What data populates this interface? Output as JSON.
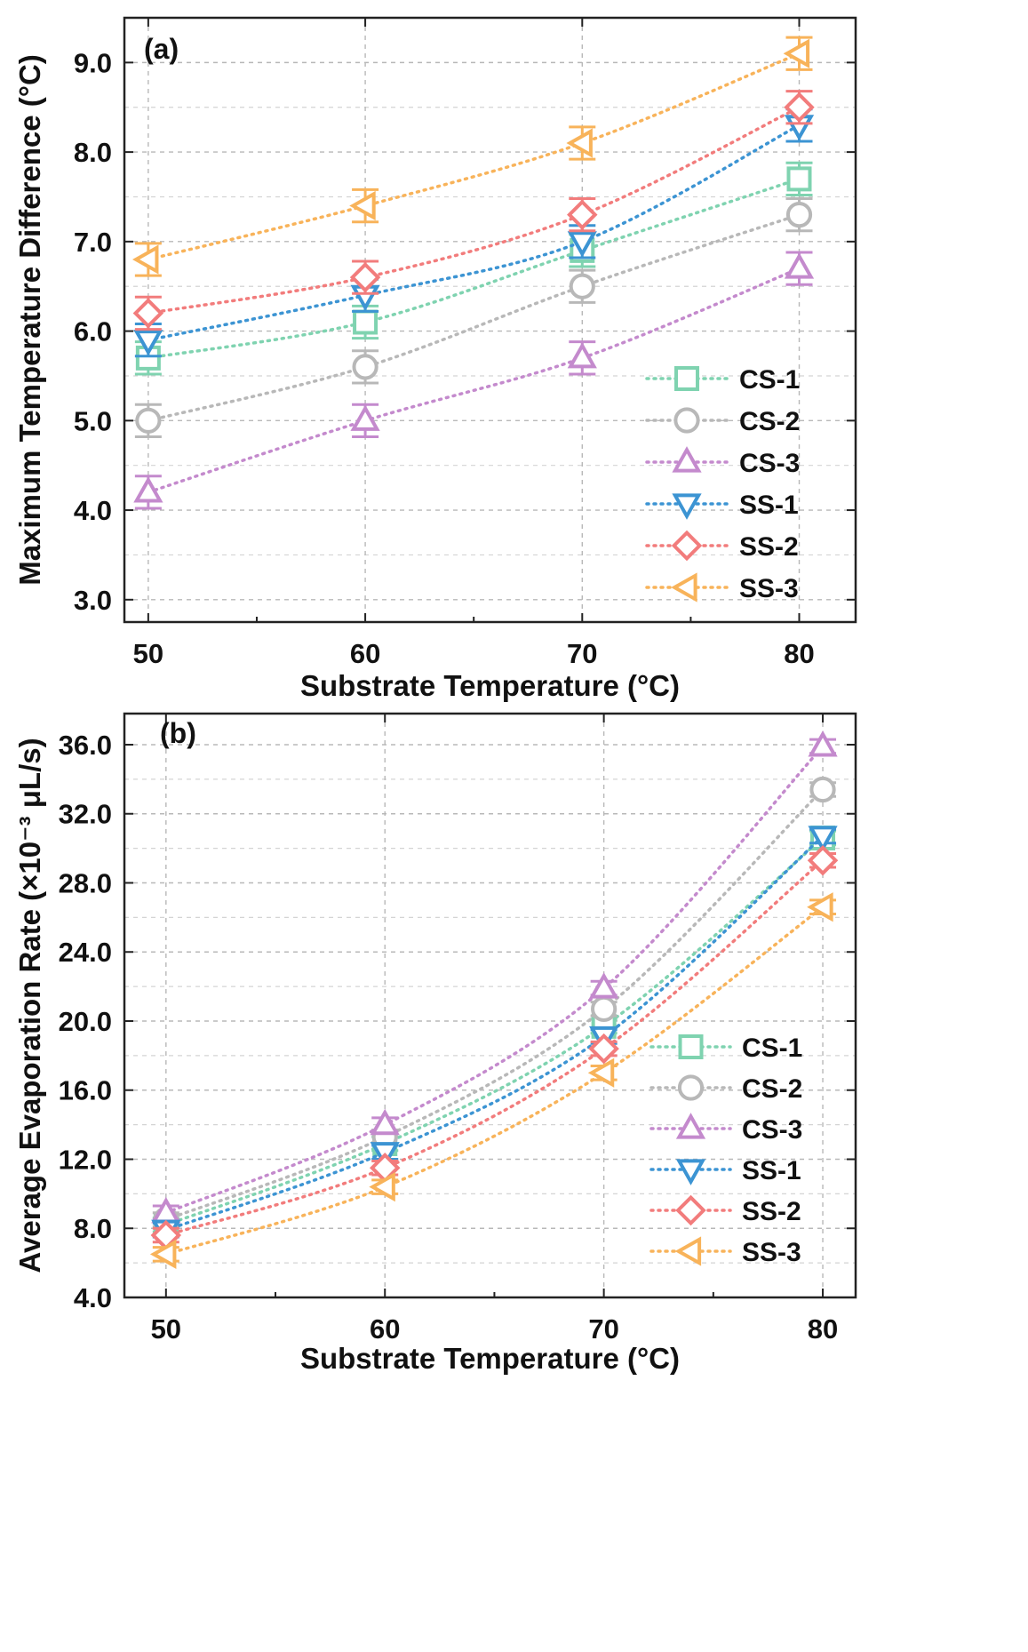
{
  "chart_data": [
    {
      "type": "line",
      "panel_label": "(a)",
      "xlabel": "Substrate Temperature (°C)",
      "ylabel": "Maximum Temperature Difference (°C)",
      "x": [
        50,
        60,
        70,
        80
      ],
      "xticks": [
        "50",
        "60",
        "70",
        "80"
      ],
      "xlim": [
        48.9,
        82.6
      ],
      "ylim": [
        2.75,
        9.5
      ],
      "yticks": [
        "3.0",
        "4.0",
        "5.0",
        "6.0",
        "7.0",
        "8.0",
        "9.0"
      ],
      "yticks_values": [
        3,
        4,
        5,
        6,
        7,
        8,
        9
      ],
      "grid": true,
      "legend_position": "lower-right",
      "series": [
        {
          "name": "CS-1",
          "marker": "square",
          "color": "#7fd3b0",
          "values": [
            5.7,
            6.1,
            6.9,
            7.7
          ],
          "error": [
            0.18,
            0.18,
            0.18,
            0.18
          ]
        },
        {
          "name": "CS-2",
          "marker": "circle",
          "color": "#b8b8b8",
          "values": [
            5.0,
            5.6,
            6.5,
            7.3
          ],
          "error": [
            0.18,
            0.18,
            0.18,
            0.18
          ]
        },
        {
          "name": "CS-3",
          "marker": "triangle-up",
          "color": "#c48acd",
          "values": [
            4.2,
            5.0,
            5.7,
            6.7
          ],
          "error": [
            0.18,
            0.18,
            0.18,
            0.18
          ]
        },
        {
          "name": "SS-1",
          "marker": "triangle-down",
          "color": "#3c94d3",
          "values": [
            5.9,
            6.4,
            7.0,
            8.3
          ],
          "error": [
            0.18,
            0.18,
            0.18,
            0.18
          ]
        },
        {
          "name": "SS-2",
          "marker": "diamond",
          "color": "#f27c7c",
          "values": [
            6.2,
            6.6,
            7.3,
            8.5
          ],
          "error": [
            0.18,
            0.18,
            0.18,
            0.18
          ]
        },
        {
          "name": "SS-3",
          "marker": "triangle-left",
          "color": "#f8b35a",
          "values": [
            6.8,
            7.4,
            8.1,
            9.1
          ],
          "error": [
            0.18,
            0.18,
            0.18,
            0.18
          ]
        }
      ]
    },
    {
      "type": "line",
      "panel_label": "(b)",
      "xlabel": "Substrate Temperature (°C)",
      "ylabel": "Average Evaporation Rate (×10⁻³ μL/s)",
      "x": [
        50,
        60,
        70,
        80
      ],
      "xticks": [
        "50",
        "60",
        "70",
        "80"
      ],
      "xlim": [
        48.1,
        81.5
      ],
      "ylim": [
        4.0,
        37.8
      ],
      "yticks": [
        "4.0",
        "8.0",
        "12.0",
        "16.0",
        "20.0",
        "24.0",
        "28.0",
        "32.0",
        "36.0"
      ],
      "yticks_values": [
        4,
        8,
        12,
        16,
        20,
        24,
        28,
        32,
        36
      ],
      "grid": true,
      "legend_position": "lower-right",
      "series": [
        {
          "name": "CS-1",
          "marker": "square",
          "color": "#7fd3b0",
          "values": [
            8.2,
            12.9,
            19.7,
            30.6
          ],
          "error": [
            0.4,
            0.4,
            0.4,
            0.4
          ]
        },
        {
          "name": "CS-2",
          "marker": "circle",
          "color": "#b8b8b8",
          "values": [
            8.5,
            13.3,
            20.7,
            33.4
          ],
          "error": [
            0.4,
            0.4,
            0.4,
            0.4
          ]
        },
        {
          "name": "CS-3",
          "marker": "triangle-up",
          "color": "#c48acd",
          "values": [
            8.9,
            14.0,
            21.9,
            35.9
          ],
          "error": [
            0.4,
            0.4,
            0.4,
            0.4
          ]
        },
        {
          "name": "SS-1",
          "marker": "triangle-down",
          "color": "#3c94d3",
          "values": [
            7.9,
            12.4,
            19.1,
            30.7
          ],
          "error": [
            0.4,
            0.4,
            0.4,
            0.4
          ]
        },
        {
          "name": "SS-2",
          "marker": "diamond",
          "color": "#f27c7c",
          "values": [
            7.6,
            11.5,
            18.4,
            29.3
          ],
          "error": [
            0.4,
            0.4,
            0.4,
            0.4
          ]
        },
        {
          "name": "SS-3",
          "marker": "triangle-left",
          "color": "#f8b35a",
          "values": [
            6.5,
            10.4,
            17.0,
            26.6
          ],
          "error": [
            0.4,
            0.4,
            0.4,
            0.4
          ]
        }
      ]
    }
  ]
}
